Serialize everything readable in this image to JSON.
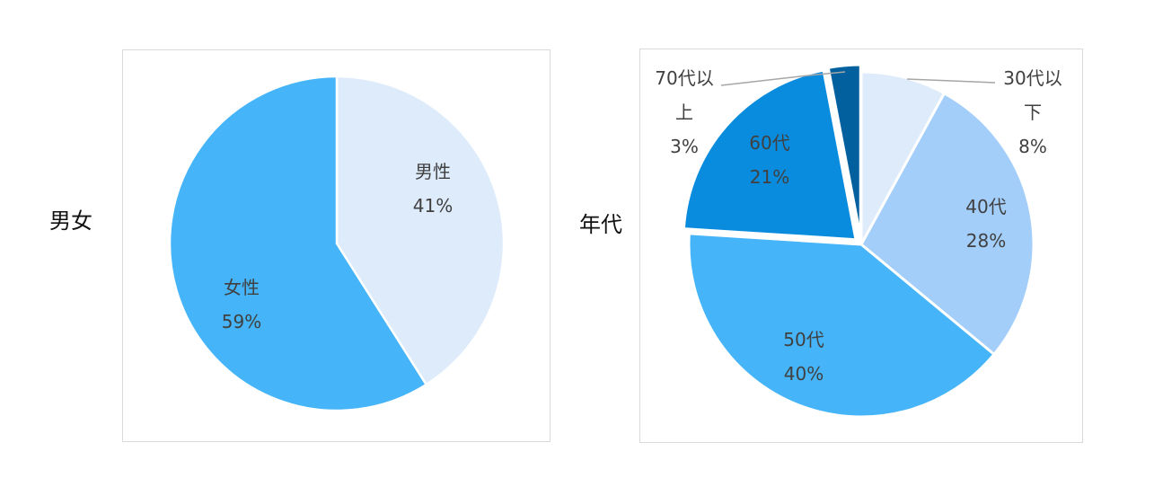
{
  "chart_data": [
    {
      "type": "pie",
      "title": "男女",
      "slices": [
        {
          "label": "男性",
          "percent_label": "41%",
          "value": 41,
          "color": "#DDEBFA"
        },
        {
          "label": "女性",
          "percent_label": "59%",
          "value": 59,
          "color": "#45B4F8"
        }
      ]
    },
    {
      "type": "pie",
      "title": "年代",
      "slices": [
        {
          "label": "30代以下",
          "label_lines": [
            "30代以",
            "下"
          ],
          "percent_label": "8%",
          "value": 8,
          "color": "#DDEBFA"
        },
        {
          "label": "40代",
          "label_lines": [
            "40代"
          ],
          "percent_label": "28%",
          "value": 28,
          "color": "#A3CEFA"
        },
        {
          "label": "50代",
          "label_lines": [
            "50代"
          ],
          "percent_label": "40%",
          "value": 40,
          "color": "#45B4F8"
        },
        {
          "label": "60代",
          "label_lines": [
            "60代"
          ],
          "percent_label": "21%",
          "value": 21,
          "color": "#0A8CDE"
        },
        {
          "label": "70代以上",
          "label_lines": [
            "70代以",
            "上"
          ],
          "percent_label": "3%",
          "value": 3,
          "color": "#03609E"
        }
      ]
    }
  ]
}
